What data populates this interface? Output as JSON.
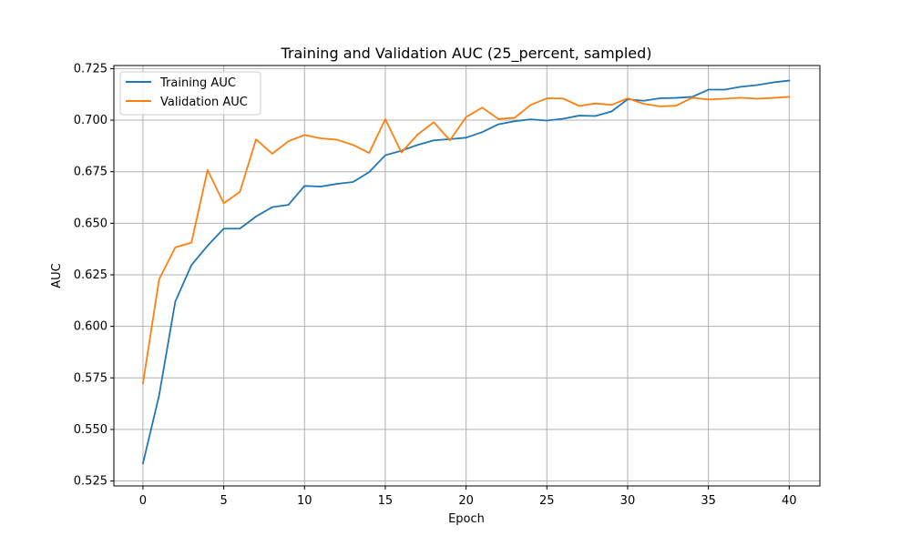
{
  "chart_data": {
    "type": "line",
    "title": "Training and Validation AUC (25_percent, sampled)",
    "xlabel": "Epoch",
    "ylabel": "AUC",
    "xlim": [
      -1.8,
      41.9
    ],
    "ylim": [
      0.5226,
      0.7265
    ],
    "xticks": [
      0,
      5,
      10,
      15,
      20,
      25,
      30,
      35,
      40
    ],
    "yticks": [
      0.525,
      0.55,
      0.575,
      0.6,
      0.625,
      0.65,
      0.675,
      0.7,
      0.725
    ],
    "ytick_labels": [
      "0.525",
      "0.550",
      "0.575",
      "0.600",
      "0.625",
      "0.650",
      "0.675",
      "0.700",
      "0.725"
    ],
    "grid": true,
    "legend_position": "upper-left",
    "x": [
      0,
      1,
      2,
      3,
      4,
      5,
      6,
      7,
      8,
      9,
      10,
      11,
      12,
      13,
      14,
      15,
      16,
      17,
      18,
      19,
      20,
      21,
      22,
      23,
      24,
      25,
      26,
      27,
      28,
      29,
      30,
      31,
      32,
      33,
      34,
      35,
      36,
      37,
      38,
      39,
      40
    ],
    "series": [
      {
        "name": "Training AUC",
        "color": "#1f77b4",
        "values": [
          0.5335,
          0.5665,
          0.612,
          0.6297,
          0.6391,
          0.6474,
          0.6474,
          0.6533,
          0.6578,
          0.6589,
          0.6681,
          0.6678,
          0.6691,
          0.67,
          0.6748,
          0.683,
          0.6852,
          0.688,
          0.6902,
          0.6908,
          0.6915,
          0.6942,
          0.698,
          0.6995,
          0.7004,
          0.6998,
          0.7007,
          0.7022,
          0.702,
          0.7042,
          0.7101,
          0.7094,
          0.7106,
          0.7108,
          0.7113,
          0.7148,
          0.7148,
          0.7162,
          0.717,
          0.7183,
          0.7192
        ]
      },
      {
        "name": "Validation AUC",
        "color": "#ff7f0e",
        "values": [
          0.5723,
          0.6228,
          0.6383,
          0.6406,
          0.6758,
          0.6597,
          0.6652,
          0.6907,
          0.6837,
          0.6898,
          0.6928,
          0.6912,
          0.6905,
          0.688,
          0.6841,
          0.7005,
          0.6843,
          0.693,
          0.699,
          0.6902,
          0.7015,
          0.7061,
          0.7006,
          0.7011,
          0.7074,
          0.7106,
          0.7105,
          0.7069,
          0.7081,
          0.7074,
          0.7106,
          0.7079,
          0.7067,
          0.707,
          0.7109,
          0.71,
          0.7104,
          0.7109,
          0.7104,
          0.7108,
          0.7113
        ]
      }
    ]
  }
}
